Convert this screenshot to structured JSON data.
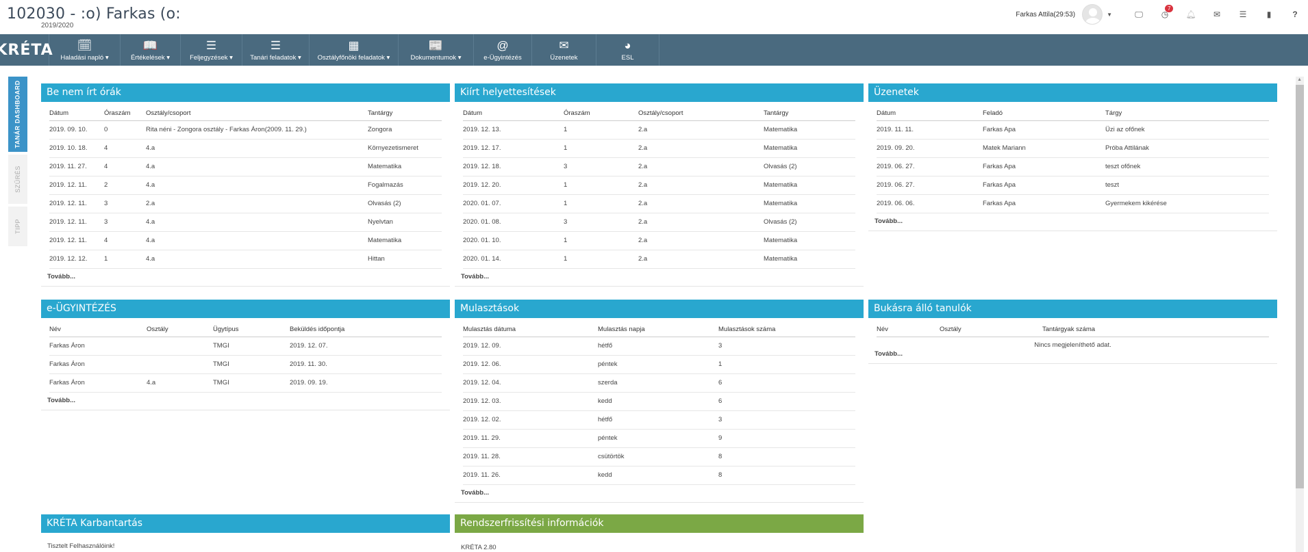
{
  "header": {
    "title": "102030 - :o) Farkas (o:",
    "school_year": "2019/2020",
    "user": "Farkas Attila(29:53)",
    "notification_count": "7"
  },
  "nav": {
    "logo": "KRÉTA",
    "items": [
      {
        "label": "Haladási napló ▾",
        "icon": "calendar-check-icon",
        "glyph": "🗓"
      },
      {
        "label": "Értékelések ▾",
        "icon": "book-icon",
        "glyph": "📖"
      },
      {
        "label": "Feljegyzések ▾",
        "icon": "list-icon",
        "glyph": "☰"
      },
      {
        "label": "Tanári feladatok ▾",
        "icon": "list-icon",
        "glyph": "☰"
      },
      {
        "label": "Osztályfőnöki feladatok ▾",
        "icon": "grid-icon",
        "glyph": "▦"
      },
      {
        "label": "Dokumentumok ▾",
        "icon": "newspaper-icon",
        "glyph": "📰"
      },
      {
        "label": "e-Ügyintézés",
        "icon": "at-icon",
        "glyph": "@"
      },
      {
        "label": "Üzenetek",
        "icon": "envelope-icon",
        "glyph": "✉"
      },
      {
        "label": "ESL",
        "icon": "pie-chart-icon",
        "glyph": "◕"
      }
    ]
  },
  "sidetabs": [
    "TANÁR DASHBOARD",
    "SZŰRÉS",
    "TIPP"
  ],
  "panels": {
    "be_nem_irt": {
      "title": "Be nem írt órák",
      "columns": [
        "Dátum",
        "Óraszám",
        "Osztály/csoport",
        "Tantárgy"
      ],
      "rows": [
        [
          "2019. 09. 10.",
          "0",
          "Rita néni - Zongora osztály - Farkas Áron(2009. 11. 29.)",
          "Zongora"
        ],
        [
          "2019. 10. 18.",
          "4",
          "4.a",
          "Környezetismeret"
        ],
        [
          "2019. 11. 27.",
          "4",
          "4.a",
          "Matematika"
        ],
        [
          "2019. 12. 11.",
          "2",
          "4.a",
          "Fogalmazás"
        ],
        [
          "2019. 12. 11.",
          "3",
          "2.a",
          "Olvasás (2)"
        ],
        [
          "2019. 12. 11.",
          "3",
          "4.a",
          "Nyelvtan"
        ],
        [
          "2019. 12. 11.",
          "4",
          "4.a",
          "Matematika"
        ],
        [
          "2019. 12. 12.",
          "1",
          "4.a",
          "Hittan"
        ]
      ],
      "more": "Tovább..."
    },
    "kiirt": {
      "title": "Kiírt helyettesítések",
      "columns": [
        "Dátum",
        "Óraszám",
        "Osztály/csoport",
        "Tantárgy"
      ],
      "rows": [
        [
          "2019. 12. 13.",
          "1",
          "2.a",
          "Matematika"
        ],
        [
          "2019. 12. 17.",
          "1",
          "2.a",
          "Matematika"
        ],
        [
          "2019. 12. 18.",
          "3",
          "2.a",
          "Olvasás (2)"
        ],
        [
          "2019. 12. 20.",
          "1",
          "2.a",
          "Matematika"
        ],
        [
          "2020. 01. 07.",
          "1",
          "2.a",
          "Matematika"
        ],
        [
          "2020. 01. 08.",
          "3",
          "2.a",
          "Olvasás (2)"
        ],
        [
          "2020. 01. 10.",
          "1",
          "2.a",
          "Matematika"
        ],
        [
          "2020. 01. 14.",
          "1",
          "2.a",
          "Matematika"
        ]
      ],
      "more": "Tovább..."
    },
    "uzenetek": {
      "title": "Üzenetek",
      "columns": [
        "Dátum",
        "Feladó",
        "Tárgy"
      ],
      "rows": [
        [
          "2019. 11. 11.",
          "Farkas Apa",
          "Üzi az ofőnek"
        ],
        [
          "2019. 09. 20.",
          "Matek Mariann",
          "Próba Attilának"
        ],
        [
          "2019. 06. 27.",
          "Farkas Apa",
          "teszt ofőnek"
        ],
        [
          "2019. 06. 27.",
          "Farkas Apa",
          "teszt"
        ],
        [
          "2019. 06. 06.",
          "Farkas Apa",
          "Gyermekem kikérése"
        ]
      ],
      "more": "Tovább..."
    },
    "eugy": {
      "title": "e-ÜGYINTÉZÉS",
      "columns": [
        "Név",
        "Osztály",
        "Ügytípus",
        "Beküldés időpontja"
      ],
      "rows": [
        [
          "Farkas Áron",
          "",
          "TMGI",
          "2019. 12. 07."
        ],
        [
          "Farkas Áron",
          "",
          "TMGI",
          "2019. 11. 30."
        ],
        [
          "Farkas Áron",
          "4.a",
          "TMGI",
          "2019. 09. 19."
        ]
      ],
      "more": "Tovább..."
    },
    "mulasztasok": {
      "title": "Mulasztások",
      "columns": [
        "Mulasztás dátuma",
        "Mulasztás napja",
        "Mulasztások száma"
      ],
      "rows": [
        [
          "2019. 12. 09.",
          "hétfő",
          "3"
        ],
        [
          "2019. 12. 06.",
          "péntek",
          "1"
        ],
        [
          "2019. 12. 04.",
          "szerda",
          "6"
        ],
        [
          "2019. 12. 03.",
          "kedd",
          "6"
        ],
        [
          "2019. 12. 02.",
          "hétfő",
          "3"
        ],
        [
          "2019. 11. 29.",
          "péntek",
          "9"
        ],
        [
          "2019. 11. 28.",
          "csütörtök",
          "8"
        ],
        [
          "2019. 11. 26.",
          "kedd",
          "8"
        ]
      ],
      "more": "Tovább..."
    },
    "bukasra": {
      "title": "Bukásra álló tanulók",
      "columns": [
        "Név",
        "Osztály",
        "Tantárgyak száma"
      ],
      "empty": "Nincs megjeleníthető adat.",
      "more": "Tovább..."
    },
    "karbantartas": {
      "title": "KRÉTA Karbantartás",
      "text": "Tisztelt Felhasználóink!"
    },
    "rendszer": {
      "title": "Rendszerfrissítési információk",
      "text": "KRÉTA 2.80"
    }
  }
}
